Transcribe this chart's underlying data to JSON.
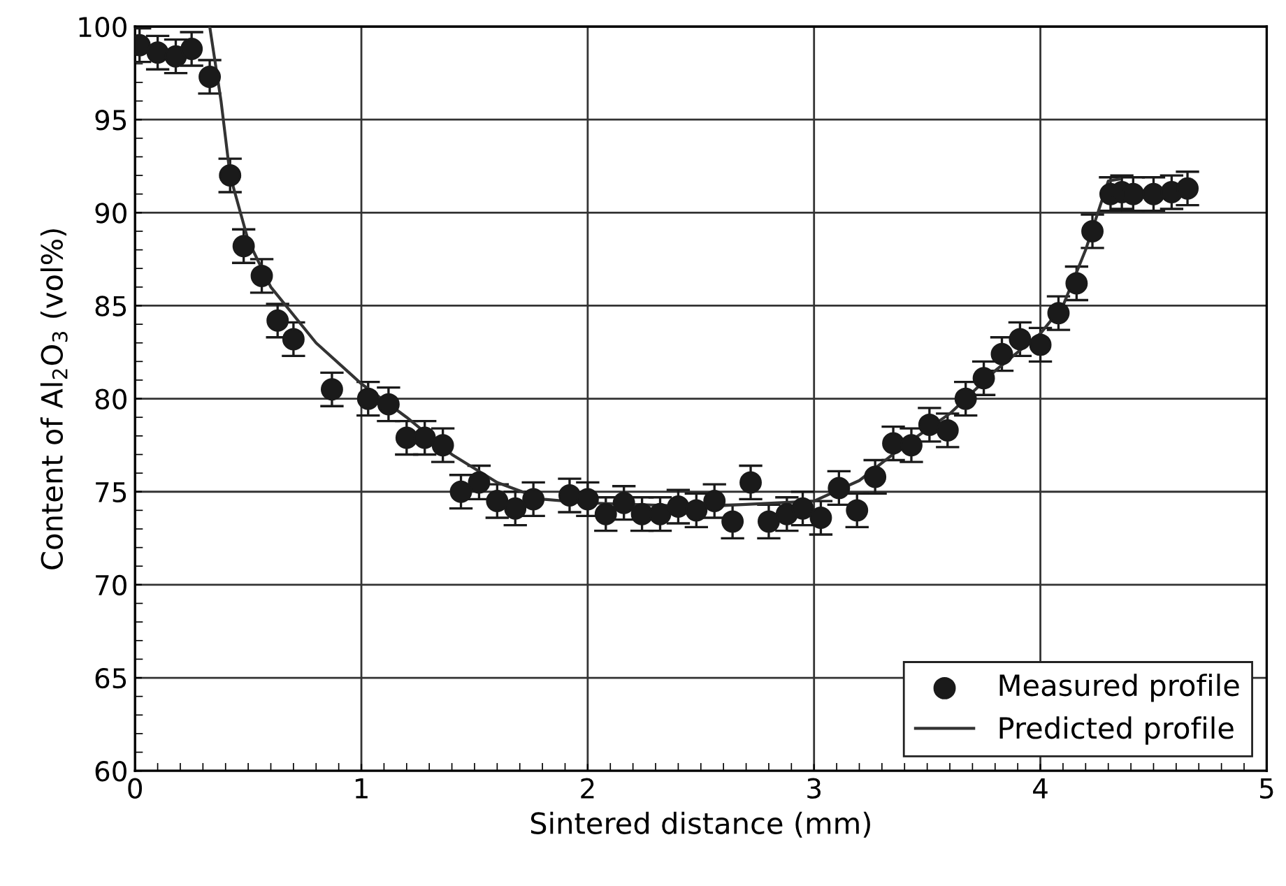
{
  "chart_data": {
    "type": "scatter",
    "xlabel": "Sintered distance (mm)",
    "ylabel": "Content of Al$_{2}$O$_{3}$ (vol%)",
    "xlim": [
      0,
      5
    ],
    "xticks": [
      0,
      1,
      2,
      3,
      4,
      5
    ],
    "ylim": [
      60,
      100
    ],
    "yticks": [
      60,
      65,
      70,
      75,
      80,
      85,
      90,
      95,
      100
    ],
    "grid": true,
    "legend": "bottom right",
    "series": [
      {
        "name": "Measured profile",
        "color": "#1a1a1a",
        "marker": "circle",
        "x": [
          0.02,
          0.1,
          0.18,
          0.25,
          0.33,
          0.42,
          0.48,
          0.56,
          0.63,
          0.7,
          0.87,
          1.03,
          1.12,
          1.2,
          1.28,
          1.36,
          1.44,
          1.52,
          1.6,
          1.68,
          1.76,
          1.92,
          2.0,
          2.08,
          2.16,
          2.24,
          2.32,
          2.4,
          2.48,
          2.56,
          2.64,
          2.72,
          2.8,
          2.88,
          2.95,
          3.03,
          3.11,
          3.19,
          3.27,
          3.35,
          3.43,
          3.51,
          3.59,
          3.67,
          3.75,
          3.83,
          3.91,
          4.0,
          4.08,
          4.16,
          4.23,
          4.31,
          4.36,
          4.41,
          4.5,
          4.58,
          4.65
        ],
        "values": [
          99.0,
          98.6,
          98.4,
          98.8,
          97.3,
          92.0,
          88.2,
          86.6,
          84.2,
          83.2,
          80.5,
          80.0,
          79.7,
          77.9,
          77.9,
          77.5,
          75.0,
          75.5,
          74.5,
          74.1,
          74.6,
          74.8,
          74.6,
          73.8,
          74.4,
          73.8,
          73.8,
          74.2,
          74.0,
          74.5,
          73.4,
          75.5,
          73.4,
          73.8,
          74.1,
          73.6,
          75.2,
          74.0,
          75.8,
          77.6,
          77.5,
          78.6,
          78.3,
          80.0,
          81.1,
          82.4,
          83.2,
          82.9,
          84.6,
          86.2,
          89.0,
          91.0,
          91.1,
          91.0,
          91.0,
          91.1,
          91.3
        ],
        "errors": [
          0.9,
          0.9,
          0.9,
          0.9,
          0.9,
          0.9,
          0.9,
          0.9,
          0.9,
          0.9,
          0.9,
          0.9,
          0.9,
          0.9,
          0.9,
          0.9,
          0.9,
          0.9,
          0.9,
          0.9,
          0.9,
          0.9,
          0.9,
          0.9,
          0.9,
          0.9,
          0.9,
          0.9,
          0.9,
          0.9,
          0.9,
          0.9,
          0.9,
          0.9,
          0.9,
          0.9,
          0.9,
          0.9,
          0.9,
          0.9,
          0.9,
          0.9,
          0.9,
          0.9,
          0.9,
          0.9,
          0.9,
          0.9,
          0.9,
          0.9,
          0.9,
          0.9,
          0.9,
          0.9,
          0.9,
          0.9,
          0.9
        ]
      },
      {
        "name": "Predicted profile",
        "type": "line",
        "color": "#333333",
        "line_style": "solid",
        "x": [
          0.33,
          0.38,
          0.42,
          0.5,
          0.6,
          0.8,
          1.0,
          1.2,
          1.4,
          1.6,
          1.8,
          2.0,
          2.5,
          3.0,
          3.2,
          3.4,
          3.6,
          3.8,
          4.0,
          4.1,
          4.2,
          4.3,
          4.35
        ],
        "values": [
          100,
          96,
          92,
          88.5,
          86,
          83,
          80.8,
          79,
          77,
          75.5,
          74.6,
          74.4,
          74.2,
          74.5,
          75.6,
          77.5,
          79.2,
          81.5,
          83.5,
          85,
          88,
          91.7,
          91.8
        ]
      }
    ]
  }
}
